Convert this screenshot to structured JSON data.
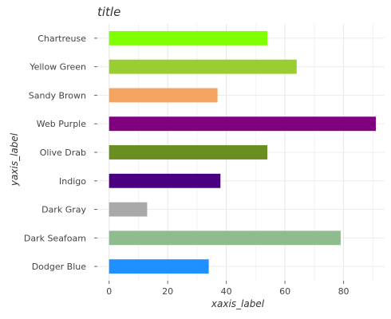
{
  "chart_data": {
    "type": "bar",
    "orientation": "horizontal",
    "title": "title",
    "xlabel": "xaxis_label",
    "ylabel": "yaxis_label",
    "xlim": [
      -4,
      94
    ],
    "xticks": [
      0,
      20,
      40,
      60,
      80
    ],
    "grid": true,
    "categories": [
      "Dodger Blue",
      "Dark Seafoam",
      "Dark Gray",
      "Indigo",
      "Olive Drab",
      "Web Purple",
      "Sandy Brown",
      "Yellow Green",
      "Chartreuse"
    ],
    "values": [
      34,
      79,
      13,
      38,
      54,
      91,
      37,
      64,
      54
    ],
    "colors": [
      "#1E90FF",
      "#8FBC8F",
      "#A9A9A9",
      "#4B0082",
      "#6B8E23",
      "#800080",
      "#F4A460",
      "#9ACD32",
      "#7FFF00"
    ]
  }
}
